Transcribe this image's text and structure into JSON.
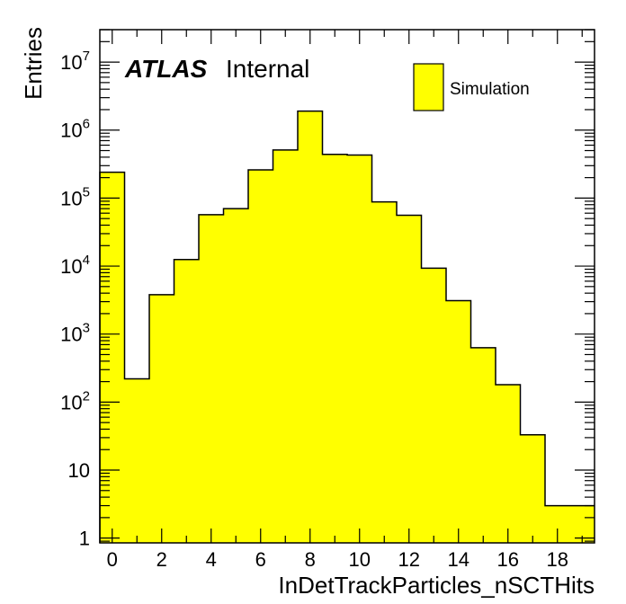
{
  "chart_data": {
    "type": "bar",
    "style": "histogram",
    "x": [
      0,
      1,
      2,
      3,
      4,
      5,
      6,
      7,
      8,
      9,
      10,
      11,
      12,
      13,
      14,
      15,
      16,
      17,
      18,
      19
    ],
    "values": [
      240000,
      220,
      3800,
      12500,
      57000,
      70000,
      260000,
      510000,
      1900000,
      440000,
      430000,
      88000,
      56000,
      9300,
      3100,
      630,
      180,
      33,
      3,
      3
    ],
    "xlim": [
      -0.5,
      19.5
    ],
    "ylim": [
      0.85,
      30000000
    ],
    "yscale": "log",
    "xticks": [
      0,
      2,
      4,
      6,
      8,
      10,
      12,
      14,
      16,
      18
    ],
    "xlabel": "InDetTrackParticles_nSCTHits",
    "ylabel": "Entries",
    "grid": false,
    "legend": {
      "position": "top-right",
      "entries": [
        "Simulation"
      ]
    },
    "atlas": {
      "bold": "ATLAS",
      "status": "Internal"
    },
    "colors": {
      "fill": "#ffff00",
      "line": "#000000"
    }
  }
}
